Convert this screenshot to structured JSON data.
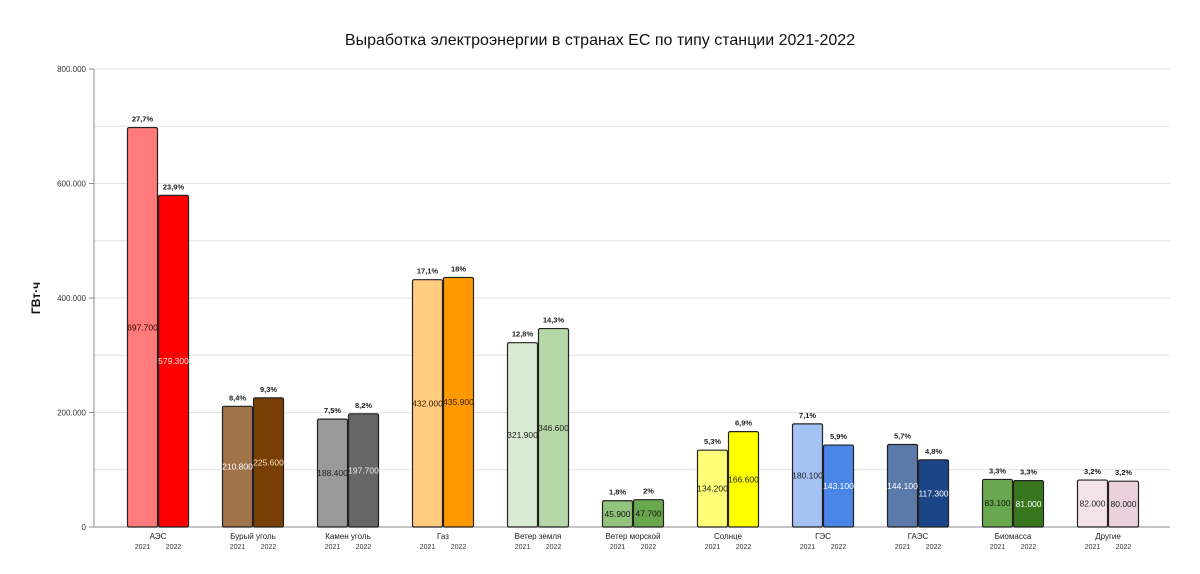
{
  "chart_data": {
    "type": "bar",
    "title": "Выработка электроэнергии в странах ЕС по типу станции 2021-2022",
    "xlabel": "",
    "ylabel": "ГВт·ч",
    "ylim": [
      0,
      800000
    ],
    "yticks": [
      0,
      200000,
      400000,
      600000,
      800000
    ],
    "ytick_labels": [
      "0",
      "200.000",
      "400.000",
      "600.000",
      "800.000"
    ],
    "grid": true,
    "categories": [
      "АЭС",
      "Бурый уголь",
      "Камен уголь",
      "Газ",
      "Ветер земля",
      "Ветер морской",
      "Солнце",
      "ГЭС",
      "ГАЭС",
      "Биомасса",
      "Другие"
    ],
    "series": [
      {
        "name": "2021",
        "values": [
          697700,
          210800,
          188400,
          432000,
          321900,
          45900,
          134200,
          180100,
          144100,
          83100,
          82000
        ],
        "value_labels": [
          "697.700",
          "210.800",
          "188.400",
          "432.000",
          "321.900",
          "45.900",
          "134.200",
          "180.100",
          "144.100",
          "83.100",
          "82.000"
        ],
        "share_labels": [
          "27,7%",
          "8,4%",
          "7,5%",
          "17,1%",
          "12,8%",
          "1,8%",
          "5,3%",
          "7,1%",
          "5,7%",
          "3,3%",
          "3,2%"
        ],
        "colors": [
          "#ff7b7b",
          "#a0734a",
          "#9a9a9a",
          "#ffcc80",
          "#d9ead3",
          "#93c47d",
          "#ffff77",
          "#a4c2f4",
          "#5b7aaa",
          "#6aa84f",
          "#f4e4ea"
        ],
        "label_colors": [
          "#3a0000",
          "#ffffff",
          "#222222",
          "#3a2000",
          "#222222",
          "#111111",
          "#222222",
          "#222222",
          "#ffffff",
          "#111111",
          "#222222"
        ]
      },
      {
        "name": "2022",
        "values": [
          579300,
          225600,
          197700,
          435900,
          346600,
          47700,
          166600,
          143100,
          117300,
          81000,
          80000
        ],
        "value_labels": [
          "579.300",
          "225.600",
          "197.700",
          "435.900",
          "346.600",
          "47.700",
          "166.600",
          "143.100",
          "117.300",
          "81.000",
          "80.000"
        ],
        "share_labels": [
          "23,9%",
          "9,3%",
          "8,2%",
          "18%",
          "14,3%",
          "2%",
          "6,9%",
          "5,9%",
          "4,8%",
          "3,3%",
          "3,2%"
        ],
        "colors": [
          "#ff0000",
          "#783f04",
          "#666666",
          "#ff9900",
          "#b6d7a8",
          "#6aa84f",
          "#ffff00",
          "#4a86e8",
          "#1c4587",
          "#38761d",
          "#ead1dc"
        ],
        "label_colors": [
          "#ffe0e0",
          "#ffe0c0",
          "#eeeeee",
          "#3a2000",
          "#222222",
          "#111111",
          "#222222",
          "#ffffff",
          "#ffffff",
          "#ffffff",
          "#222222"
        ]
      }
    ]
  }
}
